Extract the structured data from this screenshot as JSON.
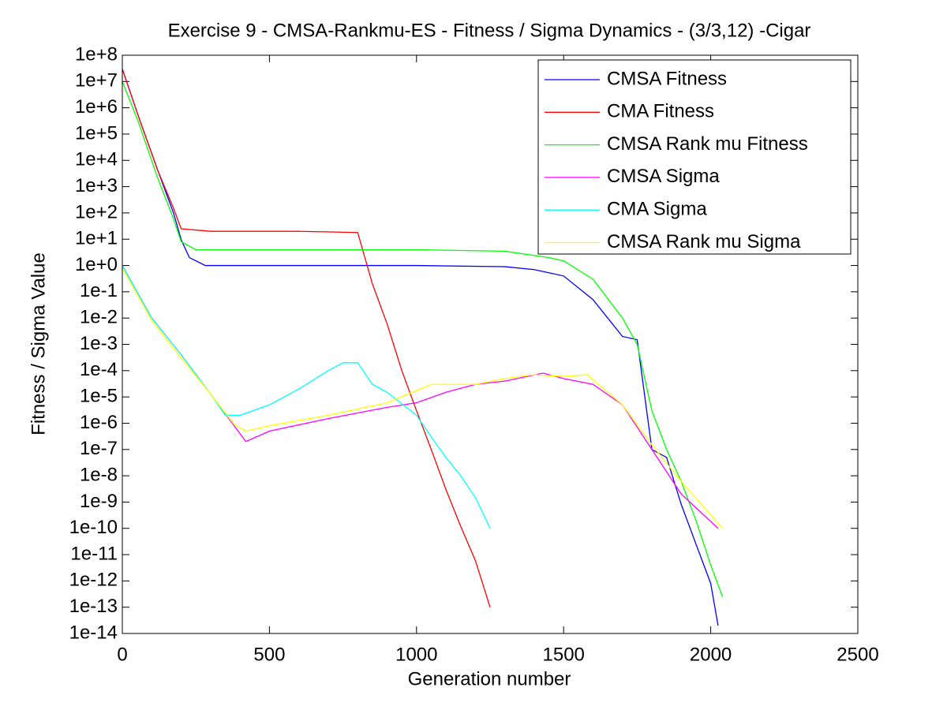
{
  "chart_data": {
    "type": "line",
    "title": "Exercise 9 - CMSA-Rankmu-ES - Fitness / Sigma Dynamics - (3/3,12) -Cigar",
    "x_label": "Generation number",
    "y_label": "Fitness / Sigma Value",
    "log_y": true,
    "grid": false,
    "legend": "upper right",
    "xlim": [
      0,
      2500
    ],
    "xticks": [
      0,
      500,
      1000,
      1500,
      2000,
      2500
    ],
    "ylim": [
      1e-14,
      100000000.0
    ],
    "yticks": [
      {
        "value": 100000000.0,
        "label": "1e+8"
      },
      {
        "value": 10000000.0,
        "label": "1e+7"
      },
      {
        "value": 1000000.0,
        "label": "1e+6"
      },
      {
        "value": 100000.0,
        "label": "1e+5"
      },
      {
        "value": 10000.0,
        "label": "1e+4"
      },
      {
        "value": 1000.0,
        "label": "1e+3"
      },
      {
        "value": 100.0,
        "label": "1e+2"
      },
      {
        "value": 10.0,
        "label": "1e+1"
      },
      {
        "value": 1,
        "label": "1e+0"
      },
      {
        "value": 0.1,
        "label": "1e-1"
      },
      {
        "value": 0.01,
        "label": "1e-2"
      },
      {
        "value": 0.001,
        "label": "1e-3"
      },
      {
        "value": 0.0001,
        "label": "1e-4"
      },
      {
        "value": 1e-05,
        "label": "1e-5"
      },
      {
        "value": 1e-06,
        "label": "1e-6"
      },
      {
        "value": 1e-07,
        "label": "1e-7"
      },
      {
        "value": 1e-08,
        "label": "1e-8"
      },
      {
        "value": 1e-09,
        "label": "1e-9"
      },
      {
        "value": 1e-10,
        "label": "1e-10"
      },
      {
        "value": 1e-11,
        "label": "1e-11"
      },
      {
        "value": 1e-12,
        "label": "1e-12"
      },
      {
        "value": 1e-13,
        "label": "1e-13"
      },
      {
        "value": 1e-14,
        "label": "1e-14"
      }
    ],
    "series": [
      {
        "name": "CMSA Fitness",
        "color": "#0000ff",
        "x": [
          0,
          54,
          121,
          174,
          201,
          228,
          282,
          600,
          1000,
          1300,
          1400,
          1500,
          1600,
          1650,
          1700,
          1750,
          1800,
          1850,
          1900,
          1950,
          2000,
          2025
        ],
        "values": [
          30000000.0,
          500000.0,
          4000.0,
          100,
          9,
          2,
          1,
          1,
          1,
          0.9,
          0.7,
          0.4,
          0.05,
          0.01,
          0.002,
          0.0015,
          1e-07,
          5e-08,
          8e-10,
          2.5e-11,
          8e-13,
          2e-14
        ]
      },
      {
        "name": "CMA Fitness",
        "color": "#ff0000",
        "x": [
          0,
          54,
          121,
          174,
          200,
          300,
          600,
          800,
          850,
          900,
          950,
          1000,
          1050,
          1100,
          1150,
          1200,
          1250
        ],
        "values": [
          30000000.0,
          500000.0,
          4000.0,
          150,
          25,
          20,
          20,
          18,
          0.2,
          0.006,
          0.0001,
          3e-06,
          1e-07,
          3e-09,
          1.2e-10,
          6e-12,
          1e-13
        ]
      },
      {
        "name": "CMSA Rank mu Fitness",
        "color": "#00ff00",
        "x": [
          0,
          54,
          121,
          174,
          200,
          250,
          600,
          1000,
          1300,
          1450,
          1500,
          1600,
          1700,
          1750,
          1800,
          1850,
          1900,
          1950,
          2000,
          2040
        ],
        "values": [
          10000000.0,
          300000.0,
          2000.0,
          60,
          8,
          4,
          4,
          4,
          3.5,
          2,
          1.5,
          0.3,
          0.01,
          0.001,
          3e-06,
          1e-07,
          6e-09,
          2e-10,
          4e-12,
          2.5e-13
        ]
      },
      {
        "name": "CMSA Sigma",
        "color": "#ff00ff",
        "x": [
          0,
          100,
          200,
          300,
          380,
          420,
          500,
          700,
          900,
          1000,
          1100,
          1200,
          1300,
          1430,
          1500,
          1600,
          1700,
          1800,
          1900,
          2025
        ],
        "values": [
          1,
          0.01,
          0.0004,
          1.3e-05,
          8e-07,
          2e-07,
          5e-07,
          1.5e-06,
          4e-06,
          6e-06,
          1.5e-05,
          3e-05,
          4e-05,
          8e-05,
          5e-05,
          3e-05,
          5e-06,
          1e-07,
          2e-09,
          1e-10
        ]
      },
      {
        "name": "CMA Sigma",
        "color": "#00ffff",
        "x": [
          0,
          100,
          200,
          300,
          350,
          400,
          500,
          600,
          700,
          750,
          800,
          850,
          900,
          1000,
          1050,
          1100,
          1150,
          1200,
          1250
        ],
        "values": [
          1,
          0.01,
          0.0004,
          1.3e-05,
          2e-06,
          2e-06,
          5e-06,
          2e-05,
          0.0001,
          0.0002,
          0.0002,
          3e-05,
          1.5e-05,
          2e-06,
          3e-07,
          5e-08,
          1e-08,
          1.5e-09,
          1e-10
        ]
      },
      {
        "name": "CMSA Rank mu Sigma",
        "color": "#ffff00",
        "x": [
          0,
          100,
          200,
          300,
          380,
          420,
          500,
          700,
          900,
          1050,
          1200,
          1300,
          1400,
          1500,
          1580,
          1700,
          1800,
          1900,
          2040
        ],
        "values": [
          0.8,
          0.008,
          0.0003,
          1.3e-05,
          9e-07,
          5e-07,
          8e-07,
          2e-06,
          6e-06,
          3e-05,
          3e-05,
          5e-05,
          7e-05,
          6e-05,
          7e-05,
          5e-06,
          1.5e-07,
          6e-09,
          1e-10
        ]
      }
    ]
  }
}
